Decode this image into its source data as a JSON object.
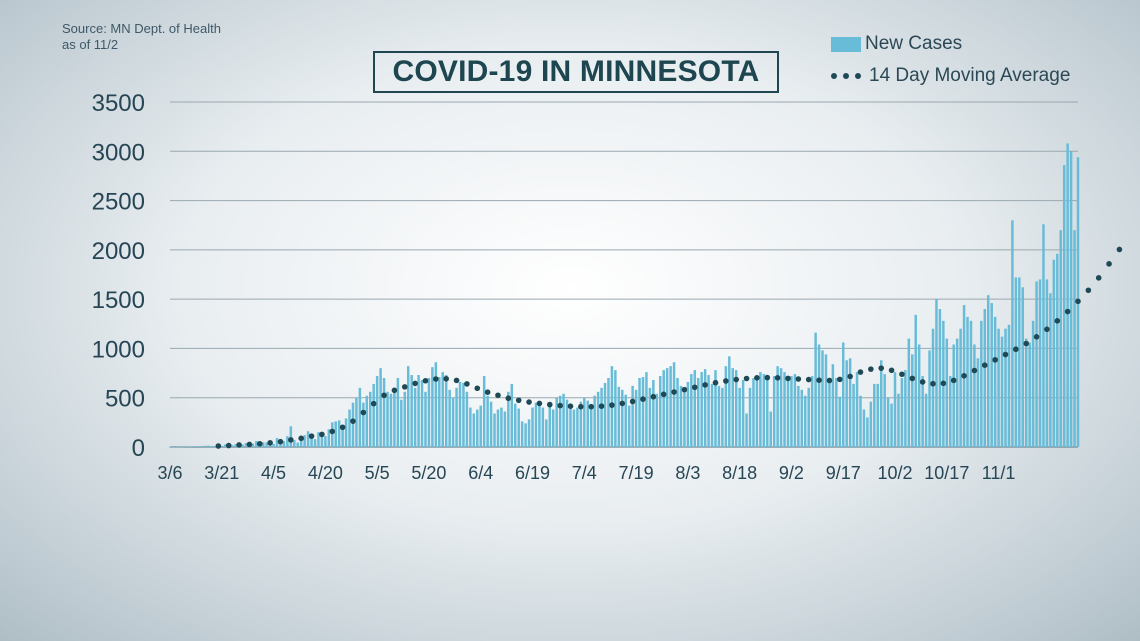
{
  "header": {
    "source_line1": "Source: MN Dept. of Health",
    "source_line2": "as of 11/2",
    "title": "COVID-19 IN MINNESOTA"
  },
  "colors": {
    "bar": "#69bcd8",
    "avg_dot": "#1f4955",
    "gridline": "#9aa8b0",
    "text": "#274655"
  },
  "chart_data": {
    "type": "bar",
    "title": "COVID-19 IN MINNESOTA",
    "xlabel": "",
    "ylabel": "",
    "ylim": [
      0,
      3500
    ],
    "yticks": [
      0,
      500,
      1000,
      1500,
      2000,
      2500,
      3000,
      3500
    ],
    "x_tick_labels": [
      "3/6",
      "3/21",
      "4/5",
      "4/20",
      "5/5",
      "5/20",
      "6/4",
      "6/19",
      "7/4",
      "7/19",
      "8/3",
      "8/18",
      "9/2",
      "9/17",
      "10/2",
      "10/17",
      "11/1"
    ],
    "x_tick_label_index_step": 15,
    "start_date": "3/6",
    "end_date": "11/1",
    "grid": true,
    "legend": "top-right",
    "series": [
      {
        "name": "New Cases",
        "type": "bar",
        "values": [
          1,
          1,
          1,
          2,
          3,
          4,
          5,
          6,
          8,
          10,
          12,
          14,
          8,
          10,
          22,
          12,
          25,
          30,
          18,
          28,
          35,
          26,
          40,
          30,
          35,
          60,
          50,
          48,
          45,
          62,
          30,
          90,
          40,
          60,
          110,
          210,
          70,
          45,
          100,
          120,
          160,
          90,
          80,
          150,
          140,
          110,
          180,
          250,
          260,
          270,
          220,
          290,
          380,
          450,
          500,
          600,
          450,
          520,
          560,
          640,
          720,
          800,
          700,
          560,
          540,
          590,
          700,
          480,
          560,
          820,
          730,
          600,
          730,
          680,
          560,
          700,
          810,
          860,
          710,
          760,
          730,
          580,
          500,
          600,
          660,
          650,
          560,
          400,
          340,
          380,
          420,
          720,
          520,
          460,
          340,
          380,
          400,
          360,
          560,
          640,
          440,
          390,
          260,
          240,
          280,
          400,
          450,
          460,
          400,
          280,
          420,
          380,
          500,
          520,
          540,
          480,
          420,
          380,
          400,
          460,
          500,
          470,
          430,
          520,
          560,
          600,
          650,
          700,
          820,
          780,
          610,
          580,
          530,
          420,
          620,
          580,
          700,
          710,
          760,
          600,
          680,
          540,
          720,
          780,
          800,
          820,
          860,
          700,
          620,
          600,
          660,
          740,
          780,
          700,
          760,
          790,
          730,
          640,
          780,
          620,
          600,
          820,
          920,
          800,
          780,
          600,
          680,
          340,
          600,
          700,
          720,
          760,
          740,
          680,
          360,
          720,
          820,
          800,
          760,
          700,
          720,
          740,
          620,
          580,
          520,
          600,
          720,
          1160,
          1040,
          980,
          940,
          700,
          840,
          700,
          510,
          1060,
          880,
          900,
          640,
          760,
          520,
          380,
          300,
          460,
          640,
          640,
          880,
          740,
          500,
          440,
          760,
          540,
          700,
          780,
          1100,
          940,
          1340,
          1040,
          720,
          540,
          980,
          1200,
          1500,
          1400,
          1280,
          1100,
          720,
          1040,
          1100,
          1200,
          1440,
          1320,
          1280,
          1040,
          900,
          1280,
          1400,
          1540,
          1460,
          1320,
          1200,
          1120,
          1200,
          1240,
          2300,
          1720,
          1720,
          1620,
          1100,
          1060,
          1280,
          1680,
          1700,
          2260,
          1700,
          1560,
          1900,
          1960,
          2200,
          2860,
          3080,
          3000,
          2200,
          2940
        ]
      },
      {
        "name": "14 Day Moving Average",
        "type": "line",
        "style": "dotted",
        "values": [
          1,
          1,
          1,
          2,
          2,
          3,
          3,
          4,
          5,
          6,
          7,
          8,
          8,
          9,
          10,
          11,
          13,
          15,
          17,
          19,
          21,
          23,
          25,
          26,
          27,
          30,
          33,
          36,
          39,
          42,
          45,
          50,
          54,
          58,
          64,
          72,
          78,
          82,
          88,
          95,
          104,
          110,
          116,
          122,
          128,
          135,
          145,
          158,
          172,
          186,
          200,
          218,
          238,
          262,
          290,
          320,
          350,
          380,
          410,
          440,
          470,
          500,
          525,
          545,
          560,
          575,
          590,
          600,
          610,
          620,
          630,
          645,
          655,
          665,
          672,
          680,
          686,
          690,
          692,
          693,
          692,
          690,
          684,
          676,
          665,
          652,
          640,
          626,
          610,
          596,
          582,
          568,
          556,
          545,
          535,
          525,
          515,
          505,
          495,
          487,
          480,
          474,
          468,
          462,
          456,
          450,
          446,
          442,
          438,
          434,
          430,
          426,
          422,
          420,
          418,
          416,
          414,
          412,
          410,
          409,
          408,
          408,
          409,
          410,
          412,
          414,
          417,
          420,
          425,
          430,
          436,
          442,
          448,
          455,
          462,
          470,
          478,
          486,
          494,
          502,
          510,
          518,
          526,
          534,
          542,
          550,
          558,
          566,
          574,
          582,
          590,
          598,
          606,
          614,
          622,
          630,
          638,
          645,
          652,
          658,
          664,
          670,
          675,
          680,
          684,
          688,
          692,
          695,
          698,
          700,
          702,
          703,
          704,
          704,
          704,
          703,
          702,
          700,
          698,
          696,
          694,
          692,
          690,
          688,
          686,
          684,
          682,
          680,
          678,
          676,
          675,
          675,
          676,
          680,
          686,
          694,
          704,
          716,
          730,
          745,
          760,
          772,
          782,
          790,
          796,
          800,
          800,
          796,
          788,
          778,
          766,
          752,
          738,
          724,
          710,
          696,
          682,
          670,
          660,
          652,
          646,
          642,
          640,
          642,
          646,
          654,
          664,
          676,
          690,
          706,
          722,
          740,
          758,
          776,
          794,
          812,
          830,
          848,
          866,
          884,
          902,
          920,
          938,
          956,
          974,
          992,
          1010,
          1030,
          1050,
          1072,
          1094,
          1118,
          1142,
          1168,
          1194,
          1222,
          1250,
          1280,
          1310,
          1342,
          1374,
          1408,
          1442,
          1478,
          1514,
          1552,
          1590,
          1630,
          1672,
          1716,
          1762,
          1810,
          1858,
          1906,
          1956,
          2004
        ]
      }
    ]
  },
  "legend": {
    "bars_label": "New Cases",
    "avg_label": "14 Day Moving Average"
  }
}
